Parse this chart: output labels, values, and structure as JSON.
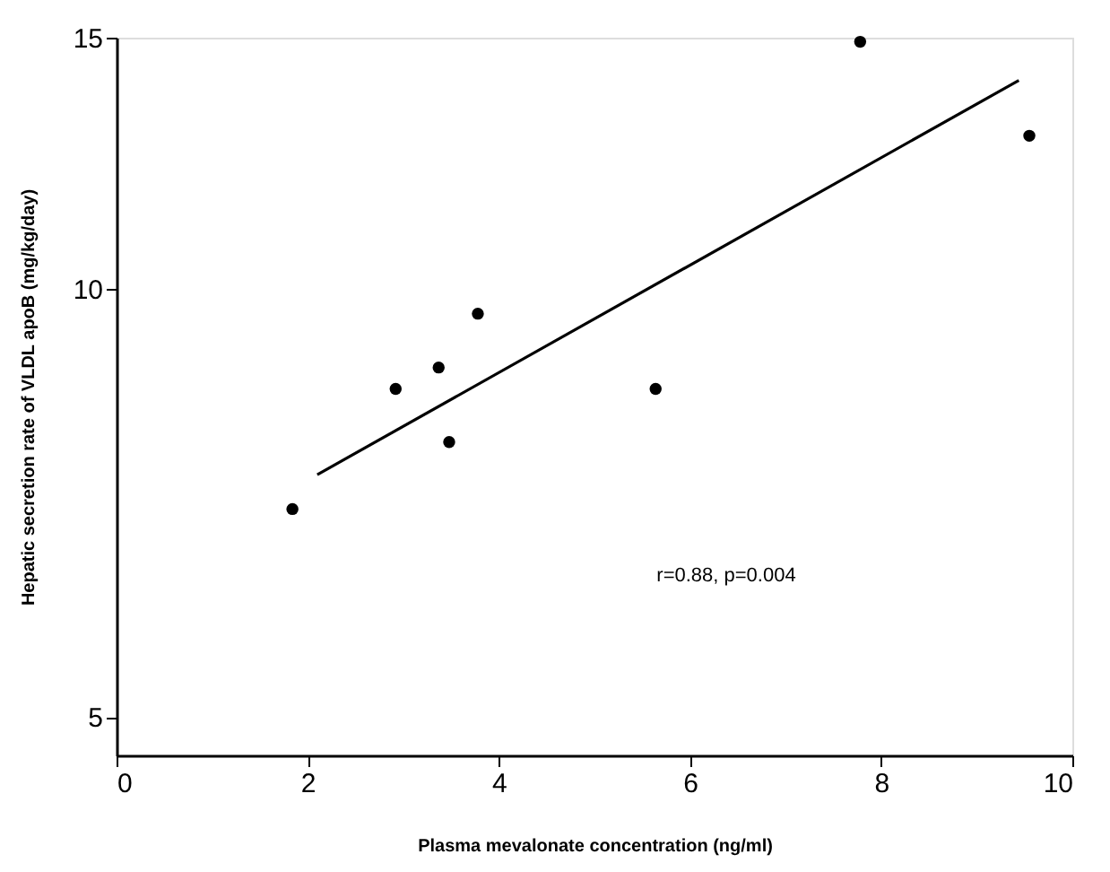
{
  "chart_data": {
    "type": "scatter",
    "xlabel": "Plasma mevalonate concentration (ng/ml)",
    "ylabel": "Hepatic secretion rate of VLDL apoB (mg/kg/day)",
    "log": "y",
    "xlim": [
      0,
      10
    ],
    "xticks": [
      0,
      2,
      4,
      6,
      8,
      10
    ],
    "ylim": [
      4.7,
      15
    ],
    "yticks": [
      5,
      10,
      15
    ],
    "grid": false,
    "series": [
      {
        "color": "#000000",
        "marker": "circle",
        "x": [
          1.84,
          2.92,
          3.37,
          3.48,
          3.78,
          5.64,
          7.78,
          9.55
        ],
        "values": [
          7.0,
          8.5,
          8.8,
          7.8,
          9.6,
          8.5,
          14.9,
          12.8
        ]
      },
      {
        "type": "line",
        "color": "#000000",
        "line_style": "solid",
        "x": [
          2.1,
          9.44
        ],
        "values": [
          7.4,
          14.0
        ]
      }
    ],
    "annotations": [
      "r=0.88, p=0.004"
    ]
  }
}
